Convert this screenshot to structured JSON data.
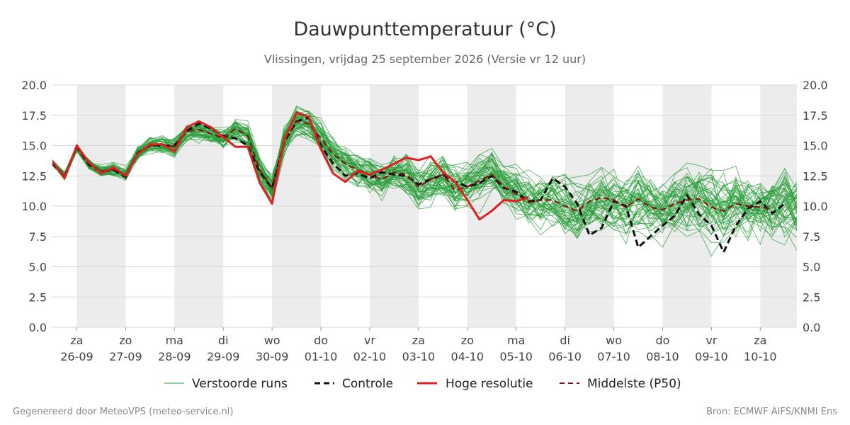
{
  "title": "Dauwpunttemperatuur (°C)",
  "subtitle": "Vlissingen, vrijdag 25 september 2026 (Versie vr 12 uur)",
  "footer_left": "Gegenereerd door MeteoVPS (meteo-service.nl)",
  "footer_right": "Bron: ECMWF AIFS/KNMI Ens",
  "legend": [
    {
      "key": "ens",
      "label": "Verstoorde runs"
    },
    {
      "key": "ctrl",
      "label": "Controle"
    },
    {
      "key": "hres",
      "label": "Hoge resolutie"
    },
    {
      "key": "p50",
      "label": "Middelste (P50)"
    }
  ],
  "colors": {
    "ens": "#2a9d3a",
    "ctrl": "#111111",
    "hres": "#e02020",
    "p50": "#8b1010",
    "band": "#ececec",
    "grid": "#d9d9d9"
  },
  "chart_data": {
    "type": "line",
    "x_unit": "hours since 2026-09-25 12:00",
    "time_step_hours": 6,
    "x_range": [
      0,
      366
    ],
    "ylim": [
      0,
      20
    ],
    "y_ticks": [
      "0.0",
      "2.5",
      "5.0",
      "7.5",
      "10.0",
      "12.5",
      "15.0",
      "17.5",
      "20.0"
    ],
    "x_tick_labels": [
      {
        "day": "za",
        "date": "26-09"
      },
      {
        "day": "zo",
        "date": "27-09"
      },
      {
        "day": "ma",
        "date": "28-09"
      },
      {
        "day": "di",
        "date": "29-09"
      },
      {
        "day": "wo",
        "date": "30-09"
      },
      {
        "day": "do",
        "date": "01-10"
      },
      {
        "day": "vr",
        "date": "02-10"
      },
      {
        "day": "za",
        "date": "03-10"
      },
      {
        "day": "zo",
        "date": "04-10"
      },
      {
        "day": "ma",
        "date": "05-10"
      },
      {
        "day": "di",
        "date": "06-10"
      },
      {
        "day": "wo",
        "date": "07-10"
      },
      {
        "day": "do",
        "date": "08-10"
      },
      {
        "day": "vr",
        "date": "09-10"
      },
      {
        "day": "za",
        "date": "10-10"
      }
    ],
    "grid": true,
    "legend_position": "bottom",
    "series": [
      {
        "name": "Hoge resolutie",
        "x_start": 0,
        "values": [
          13.7,
          12.3,
          15.0,
          13.6,
          12.7,
          13.2,
          12.5,
          14.3,
          15.1,
          15.1,
          14.5,
          16.5,
          17.0,
          16.5,
          15.7,
          14.9,
          14.9,
          11.9,
          10.2,
          15.5,
          17.7,
          17.4,
          14.7,
          12.7,
          12.0,
          12.9,
          12.6,
          13.0,
          13.5,
          14.0,
          13.8,
          14.1,
          12.8,
          12.0,
          10.5,
          8.9,
          9.6,
          10.5,
          10.4,
          10.7
        ]
      },
      {
        "name": "Controle",
        "x_start": 0,
        "values": [
          13.5,
          12.4,
          14.9,
          13.4,
          12.8,
          13.0,
          12.4,
          14.4,
          15.0,
          15.0,
          15.0,
          16.2,
          16.8,
          16.4,
          15.8,
          15.6,
          15.0,
          12.8,
          11.5,
          15.3,
          17.0,
          17.3,
          15.0,
          13.5,
          12.5,
          12.7,
          12.3,
          12.8,
          12.6,
          12.5,
          11.8,
          12.2,
          12.6,
          12.0,
          11.6,
          11.9,
          12.5,
          11.5,
          11.2,
          10.4,
          10.5,
          12.3,
          11.6,
          10.2,
          7.6,
          8.2,
          10.4,
          10.0,
          6.6,
          7.5,
          8.4,
          9.2,
          10.9,
          9.3,
          8.4,
          6.2,
          8.4,
          9.8,
          10.4,
          9.4,
          10.2
        ]
      },
      {
        "name": "Middelste (P50)",
        "x_start": 0,
        "values": [
          13.6,
          12.5,
          14.8,
          13.5,
          12.9,
          13.0,
          12.6,
          14.3,
          15.0,
          15.1,
          14.9,
          16.2,
          16.3,
          16.0,
          15.6,
          16.4,
          15.8,
          13.0,
          11.5,
          15.4,
          17.0,
          16.8,
          15.6,
          14.3,
          13.5,
          13.0,
          12.6,
          12.2,
          12.8,
          12.6,
          11.6,
          12.2,
          12.6,
          11.3,
          11.6,
          12.1,
          12.6,
          11.6,
          11.0,
          10.3,
          10.5,
          10.5,
          10.0,
          9.6,
          10.4,
          10.7,
          10.5,
          9.9,
          10.6,
          9.9,
          9.7,
          10.2,
          10.5,
          10.6,
          9.9,
          9.6,
          10.2,
          10.0,
          9.9,
          9.8
        ]
      },
      {
        "name": "Verstoorde runs",
        "members": 50,
        "x_start": 0,
        "band_center_upper": [
          15.5,
          16.3,
          17.5,
          16.8,
          16.0,
          16.5,
          15.8,
          15.5,
          15.0,
          14.0,
          13.5,
          13.8,
          13.0,
          12.8,
          12.5
        ],
        "band_center_lower": [
          12.5,
          12.0,
          14.0,
          13.8,
          10.0,
          14.0,
          11.0,
          10.5,
          9.0,
          7.0,
          6.5,
          6.5,
          6.0,
          5.5,
          5.5
        ]
      }
    ]
  }
}
